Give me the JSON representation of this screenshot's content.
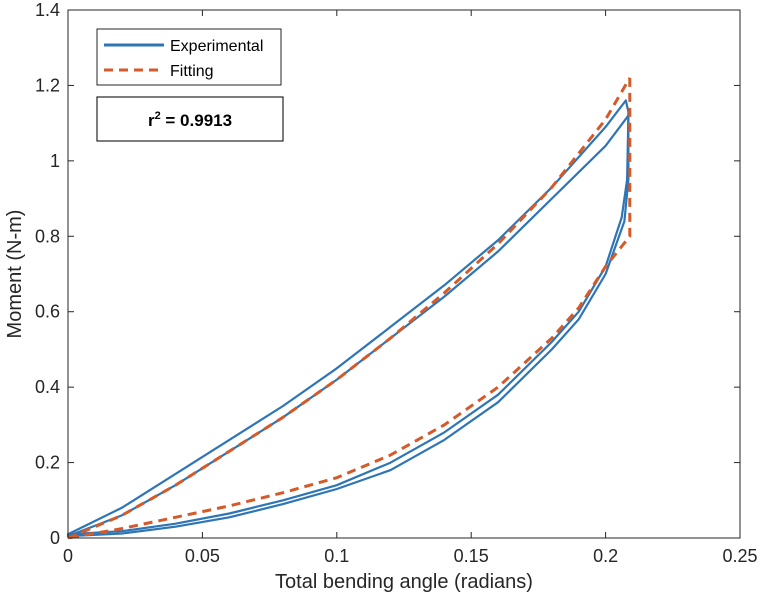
{
  "chart_data": {
    "type": "line",
    "title": "",
    "xlabel": "Total bending angle (radians)",
    "ylabel": "Moment (N-m)",
    "xlim": [
      0,
      0.25
    ],
    "ylim": [
      0,
      1.4
    ],
    "xticks": [
      0,
      0.05,
      0.1,
      0.15,
      0.2,
      0.25
    ],
    "xtick_labels": [
      "0",
      "0.05",
      "0.1",
      "0.15",
      "0.2",
      "0.25"
    ],
    "yticks": [
      0,
      0.2,
      0.4,
      0.6,
      0.8,
      1.0,
      1.2,
      1.4
    ],
    "ytick_labels": [
      "0",
      "0.2",
      "0.4",
      "0.6",
      "0.8",
      "1",
      "1.2",
      "1.4"
    ],
    "grid": false,
    "legend_position": "top-left",
    "annotation": {
      "prefix": "r",
      "sup": "2",
      "suffix": " = 0.9913"
    },
    "series": [
      {
        "name": "Experimental",
        "color": "#2E75B6",
        "style": "solid",
        "segments": [
          {
            "x": [
              0,
              0.02,
              0.04,
              0.06,
              0.08,
              0.1,
              0.12,
              0.14,
              0.16,
              0.18,
              0.2,
              0.2075
            ],
            "y": [
              0.01,
              0.08,
              0.17,
              0.26,
              0.35,
              0.45,
              0.56,
              0.67,
              0.79,
              0.93,
              1.09,
              1.16
            ]
          },
          {
            "x": [
              0.2075,
              0.2085,
              0.2085,
              0.207,
              0.2,
              0.19,
              0.18,
              0.16,
              0.14,
              0.12,
              0.1,
              0.08,
              0.06,
              0.04,
              0.02,
              0
            ],
            "y": [
              1.16,
              1.13,
              0.95,
              0.84,
              0.7,
              0.58,
              0.5,
              0.36,
              0.26,
              0.18,
              0.13,
              0.09,
              0.055,
              0.03,
              0.012,
              0.005
            ]
          },
          {
            "x": [
              0,
              0.02,
              0.04,
              0.06,
              0.08,
              0.1,
              0.12,
              0.14,
              0.16,
              0.18,
              0.2,
              0.2085
            ],
            "y": [
              0.005,
              0.06,
              0.14,
              0.23,
              0.32,
              0.42,
              0.53,
              0.64,
              0.76,
              0.9,
              1.04,
              1.12
            ]
          },
          {
            "x": [
              0.2085,
              0.208,
              0.206,
              0.2,
              0.19,
              0.18,
              0.16,
              0.14,
              0.12,
              0.1,
              0.08,
              0.06,
              0.04,
              0.02,
              0
            ],
            "y": [
              1.12,
              0.95,
              0.85,
              0.72,
              0.6,
              0.52,
              0.38,
              0.28,
              0.2,
              0.14,
              0.1,
              0.065,
              0.038,
              0.018,
              0.01
            ]
          }
        ]
      },
      {
        "name": "Fitting",
        "color": "#D45A2A",
        "style": "dashed",
        "segments": [
          {
            "x": [
              0,
              0.02,
              0.04,
              0.06,
              0.08,
              0.1,
              0.12,
              0.14,
              0.16,
              0.18,
              0.2,
              0.209
            ],
            "y": [
              0.0,
              0.06,
              0.14,
              0.23,
              0.32,
              0.42,
              0.53,
              0.65,
              0.78,
              0.93,
              1.11,
              1.22
            ]
          },
          {
            "x": [
              0.209,
              0.209,
              0.209,
              0.2,
              0.19,
              0.18,
              0.16,
              0.14,
              0.12,
              0.1,
              0.08,
              0.06,
              0.04,
              0.02,
              0
            ],
            "y": [
              1.22,
              0.95,
              0.8,
              0.72,
              0.61,
              0.53,
              0.4,
              0.3,
              0.22,
              0.16,
              0.12,
              0.085,
              0.055,
              0.025,
              0.0
            ]
          }
        ]
      }
    ]
  }
}
